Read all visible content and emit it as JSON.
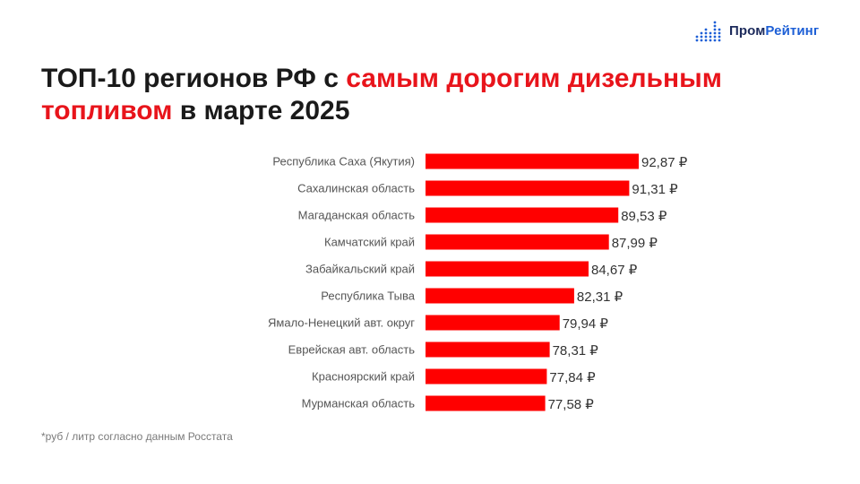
{
  "brand": {
    "part1": "Пром",
    "part2": "Рейтинг"
  },
  "title": {
    "part1": "ТОП-10 регионов РФ с ",
    "highlight1": "самым дорогим дизельным",
    "highlight2": "топливом",
    "part2": " в марте 2025"
  },
  "footnote": "*руб / литр согласно данным Росстата",
  "colors": {
    "bar": "#ff0000",
    "accent": "#e8141b",
    "brand_dark": "#1d2b5c",
    "brand_blue": "#1d5fd6"
  },
  "chart_data": {
    "type": "bar",
    "orientation": "horizontal",
    "categories": [
      "Республика Саха (Якутия)",
      "Сахалинская область",
      "Магаданская область",
      "Камчатский край",
      "Забайкальский край",
      "Республика Тыва",
      "Ямало-Ненецкий авт. округ",
      "Еврейская авт. область",
      "Красноярский край",
      "Мурманская область"
    ],
    "values": [
      92.87,
      91.31,
      89.53,
      87.99,
      84.67,
      82.31,
      79.94,
      78.31,
      77.84,
      77.58
    ],
    "value_labels": [
      "92,87 ₽",
      "91,31 ₽",
      "89,53 ₽",
      "87,99 ₽",
      "84,67 ₽",
      "82,31 ₽",
      "79,94 ₽",
      "78,31 ₽",
      "77,84 ₽",
      "77,58 ₽"
    ],
    "xlim": [
      58,
      92.87
    ],
    "grid": false,
    "legend": "none"
  }
}
